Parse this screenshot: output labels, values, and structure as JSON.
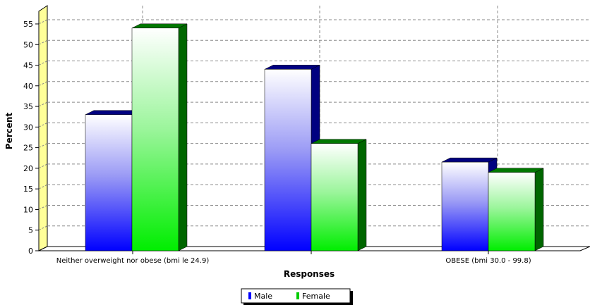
{
  "chart_data": {
    "type": "bar",
    "title": "",
    "xlabel": "Responses",
    "ylabel": "Percent",
    "ylim": [
      0,
      58
    ],
    "yticks": [
      0,
      5,
      10,
      15,
      20,
      25,
      30,
      35,
      40,
      45,
      50,
      55
    ],
    "categories": [
      "Neither overweight nor obese (bmi le 24.9)",
      "",
      "OBESE (bmi 30.0 - 99.8)"
    ],
    "series": [
      {
        "name": "Male",
        "values": [
          33,
          44,
          21.5
        ],
        "color": "#0000ff"
      },
      {
        "name": "Female",
        "values": [
          54,
          26,
          19
        ],
        "color": "#00cc00"
      }
    ],
    "grid": true,
    "legend_position": "bottom-center",
    "three_d": true
  }
}
